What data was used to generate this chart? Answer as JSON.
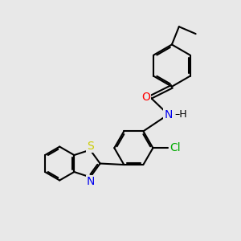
{
  "bg_color": "#e8e8e8",
  "bond_color": "#000000",
  "bond_width": 1.5,
  "atom_colors": {
    "O": "#ff0000",
    "N": "#0000ee",
    "S": "#cccc00",
    "Cl": "#00aa00",
    "C": "#000000",
    "H": "#000000"
  },
  "font_size": 9
}
